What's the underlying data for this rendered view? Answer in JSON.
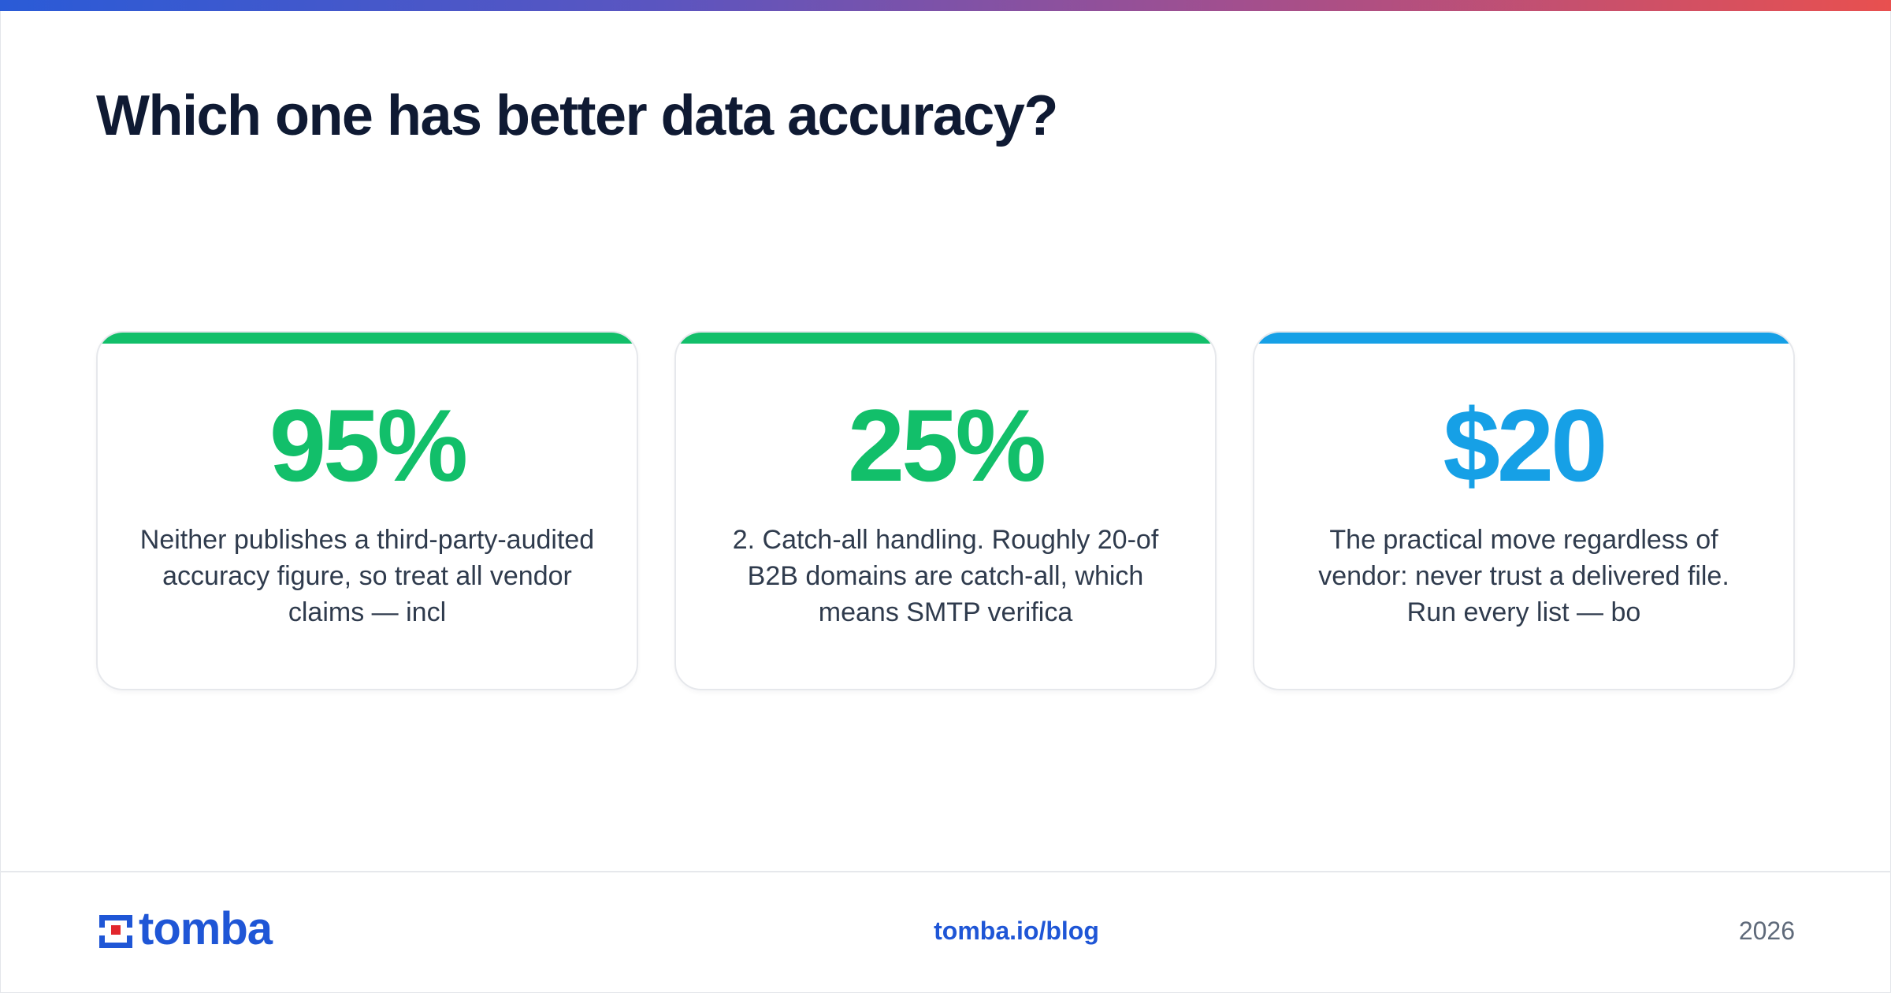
{
  "title": "Which one has better data accuracy?",
  "colors": {
    "green": "#12bf6a",
    "blue": "#16a0e6",
    "brand": "#1f56d6",
    "title": "#0f1a33",
    "logo_red": "#e2262d"
  },
  "cards": [
    {
      "stat": "95%",
      "accent": "green",
      "description": "Neither publishes a third-party-audited accuracy figure, so treat all vendor claims — incl"
    },
    {
      "stat": "25%",
      "accent": "green",
      "description": "2. Catch-all handling. Roughly 20-of B2B domains are catch-all, which means SMTP verifica"
    },
    {
      "stat": "$20",
      "accent": "blue",
      "description": "The practical move regardless of vendor: never trust a delivered file. Run every list — bo"
    }
  ],
  "footer": {
    "logo_text": "tomba",
    "logo_icon": "tomba-logo-icon",
    "link": "tomba.io/blog",
    "year": "2026"
  }
}
